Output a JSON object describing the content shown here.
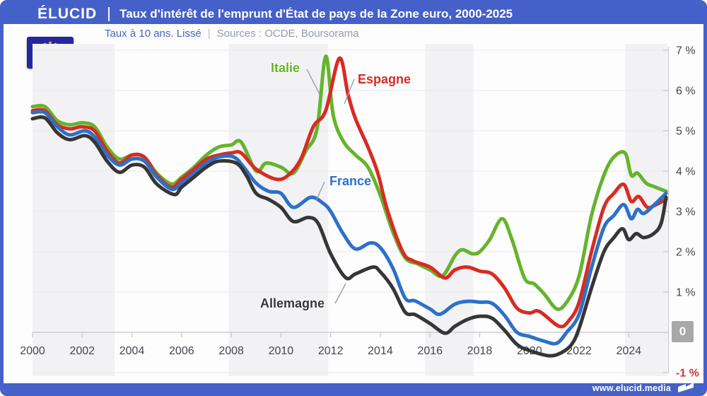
{
  "header": {
    "brand": "ÉLUCID",
    "title": "Taux d'intérêt de l'emprunt d'État de pays de la Zone euro, 2000-2025"
  },
  "subtitle": {
    "left": "Taux à 10 ans. Lissé",
    "separator": "|",
    "right": "Sources : OCDE, Boursorama"
  },
  "footer": {
    "url": "www.elucid.media"
  },
  "colors": {
    "frame_blue": "#4560c8",
    "flag_navy": "#26279e",
    "flag_gold": "#f5c73a",
    "grid": "#ececec",
    "axis": "#c6c6c6",
    "tick_label": "#43474d",
    "negative_label": "#d03a32",
    "band_gray": "#f2f2f4",
    "zero_badge_bg": "#a8a8a8"
  },
  "chart_data": {
    "type": "line",
    "title": "Taux d'intérêt de l'emprunt d'État de pays de la Zone euro, 2000-2025",
    "subtitle": "Taux à 10 ans. Lissé — Sources : OCDE, Boursorama",
    "xlim": [
      2000,
      2025.55
    ],
    "ylim": [
      -1,
      7
    ],
    "grid": true,
    "x_ticks": [
      2000,
      2002,
      2004,
      2006,
      2008,
      2010,
      2012,
      2014,
      2016,
      2018,
      2020,
      2022,
      2024
    ],
    "y_ticks": [
      {
        "v": 7,
        "label": "7 %"
      },
      {
        "v": 6,
        "label": "6 %"
      },
      {
        "v": 5,
        "label": "5 %"
      },
      {
        "v": 4,
        "label": "4 %"
      },
      {
        "v": 3,
        "label": "3 %"
      },
      {
        "v": 2,
        "label": "2 %"
      },
      {
        "v": 1,
        "label": "1 %"
      },
      {
        "v": -1,
        "label": "-1 %",
        "color": "#d03a32"
      }
    ],
    "zero_badge": "0",
    "shaded_periods": [
      [
        2000,
        2003.3
      ],
      [
        2007.9,
        2011.9
      ],
      [
        2015.8,
        2017.75
      ],
      [
        2023.85,
        2025.55
      ]
    ],
    "series": [
      {
        "name": "Italie",
        "color": "#64b42c",
        "x": [
          2000,
          2000.5,
          2001,
          2001.5,
          2002,
          2002.5,
          2003,
          2003.5,
          2004,
          2004.5,
          2005,
          2005.6,
          2006,
          2006.5,
          2007,
          2007.5,
          2008,
          2008.4,
          2009,
          2009.4,
          2010,
          2010.5,
          2011,
          2011.45,
          2011.8,
          2012.1,
          2012.5,
          2013,
          2013.5,
          2014,
          2014.5,
          2015,
          2015.5,
          2016,
          2016.5,
          2017,
          2017.3,
          2017.7,
          2018,
          2018.4,
          2018.9,
          2019.3,
          2019.8,
          2020.2,
          2020.6,
          2021.1,
          2021.5,
          2022,
          2022.5,
          2023,
          2023.4,
          2023.85,
          2024.1,
          2024.35,
          2024.7,
          2025,
          2025.5
        ],
        "y": [
          5.6,
          5.6,
          5.25,
          5.15,
          5.2,
          5.1,
          4.6,
          4.3,
          4.4,
          4.35,
          3.95,
          3.68,
          3.85,
          4.1,
          4.4,
          4.6,
          4.65,
          4.72,
          4.0,
          4.2,
          4.1,
          3.95,
          4.5,
          5.05,
          6.85,
          5.4,
          4.75,
          4.4,
          4.1,
          3.4,
          2.5,
          1.85,
          1.7,
          1.55,
          1.4,
          1.9,
          2.05,
          1.95,
          2.0,
          2.3,
          2.82,
          2.3,
          1.35,
          1.2,
          0.95,
          0.58,
          0.75,
          1.4,
          2.9,
          3.9,
          4.35,
          4.45,
          3.9,
          3.95,
          3.7,
          3.62,
          3.5
        ]
      },
      {
        "name": "Espagne",
        "color": "#d92b21",
        "x": [
          2000,
          2000.5,
          2001,
          2001.5,
          2002,
          2002.5,
          2003,
          2003.5,
          2004,
          2004.5,
          2005,
          2005.6,
          2006,
          2006.5,
          2007,
          2007.5,
          2008,
          2008.4,
          2009,
          2009.8,
          2010.3,
          2010.8,
          2011.3,
          2011.8,
          2012.35,
          2012.7,
          2013,
          2013.5,
          2013.9,
          2014.3,
          2014.9,
          2015.3,
          2016,
          2016.6,
          2017,
          2017.5,
          2018,
          2018.5,
          2019,
          2019.5,
          2020,
          2020.4,
          2021.2,
          2021.6,
          2022,
          2022.5,
          2023,
          2023.4,
          2023.8,
          2024.1,
          2024.4,
          2024.75,
          2025.1,
          2025.5
        ],
        "y": [
          5.5,
          5.5,
          5.15,
          5.05,
          5.1,
          5.0,
          4.5,
          4.2,
          4.4,
          4.35,
          3.9,
          3.6,
          3.8,
          4.05,
          4.3,
          4.4,
          4.45,
          4.45,
          4.05,
          3.8,
          3.9,
          4.3,
          5.1,
          5.5,
          6.8,
          5.9,
          5.3,
          4.6,
          3.95,
          3.0,
          2.0,
          1.78,
          1.62,
          1.35,
          1.55,
          1.62,
          1.52,
          1.45,
          1.1,
          0.6,
          0.48,
          0.52,
          0.15,
          0.3,
          0.75,
          2.0,
          3.1,
          3.45,
          3.67,
          3.25,
          3.37,
          3.1,
          3.17,
          3.3
        ]
      },
      {
        "name": "France",
        "color": "#2d70c8",
        "x": [
          2000,
          2000.5,
          2001,
          2001.5,
          2002.1,
          2002.5,
          2003,
          2003.5,
          2004,
          2004.5,
          2005,
          2005.6,
          2006,
          2006.5,
          2007,
          2007.5,
          2008.1,
          2008.5,
          2009,
          2009.5,
          2010,
          2010.5,
          2011.2,
          2011.7,
          2012,
          2012.5,
          2013,
          2013.6,
          2014,
          2014.5,
          2015,
          2015.4,
          2016,
          2016.4,
          2017,
          2017.5,
          2018,
          2018.5,
          2019,
          2019.5,
          2020,
          2020.6,
          2021.1,
          2021.5,
          2022,
          2022.5,
          2023,
          2023.4,
          2023.8,
          2024.1,
          2024.35,
          2024.6,
          2025,
          2025.5
        ],
        "y": [
          5.45,
          5.45,
          5.1,
          4.9,
          5.0,
          4.85,
          4.4,
          4.15,
          4.3,
          4.25,
          3.85,
          3.55,
          3.7,
          3.95,
          4.2,
          4.35,
          4.35,
          4.1,
          3.7,
          3.5,
          3.45,
          3.1,
          3.35,
          3.2,
          3.0,
          2.45,
          2.07,
          2.22,
          2.1,
          1.6,
          0.85,
          0.78,
          0.58,
          0.45,
          0.7,
          0.77,
          0.75,
          0.72,
          0.42,
          0.0,
          -0.1,
          -0.22,
          -0.27,
          0.0,
          0.45,
          1.6,
          2.6,
          2.9,
          3.17,
          2.82,
          3.05,
          2.95,
          3.15,
          3.45
        ]
      },
      {
        "name": "Allemagne",
        "color": "#363636",
        "x": [
          2000,
          2000.5,
          2001,
          2001.5,
          2002.1,
          2002.5,
          2003,
          2003.5,
          2004,
          2004.5,
          2005,
          2005.7,
          2006,
          2006.5,
          2007,
          2007.5,
          2008.2,
          2008.6,
          2009,
          2009.5,
          2010,
          2010.5,
          2011.1,
          2011.5,
          2012,
          2012.6,
          2013,
          2013.7,
          2014,
          2014.5,
          2015,
          2015.4,
          2016,
          2016.6,
          2017,
          2017.5,
          2018,
          2018.5,
          2019,
          2019.5,
          2020,
          2020.8,
          2021.3,
          2021.7,
          2022,
          2022.5,
          2023,
          2023.4,
          2023.75,
          2024,
          2024.3,
          2024.6,
          2025,
          2025.3,
          2025.5
        ],
        "y": [
          5.3,
          5.32,
          4.95,
          4.78,
          4.88,
          4.72,
          4.25,
          3.97,
          4.15,
          4.1,
          3.68,
          3.42,
          3.6,
          3.85,
          4.1,
          4.25,
          4.2,
          3.9,
          3.45,
          3.3,
          3.1,
          2.75,
          2.85,
          2.7,
          1.95,
          1.36,
          1.45,
          1.62,
          1.5,
          1.1,
          0.5,
          0.44,
          0.22,
          -0.02,
          0.15,
          0.32,
          0.4,
          0.35,
          0.05,
          -0.3,
          -0.45,
          -0.58,
          -0.5,
          -0.3,
          0.1,
          1.1,
          2.0,
          2.35,
          2.57,
          2.3,
          2.45,
          2.35,
          2.45,
          2.7,
          3.35
        ]
      }
    ]
  }
}
